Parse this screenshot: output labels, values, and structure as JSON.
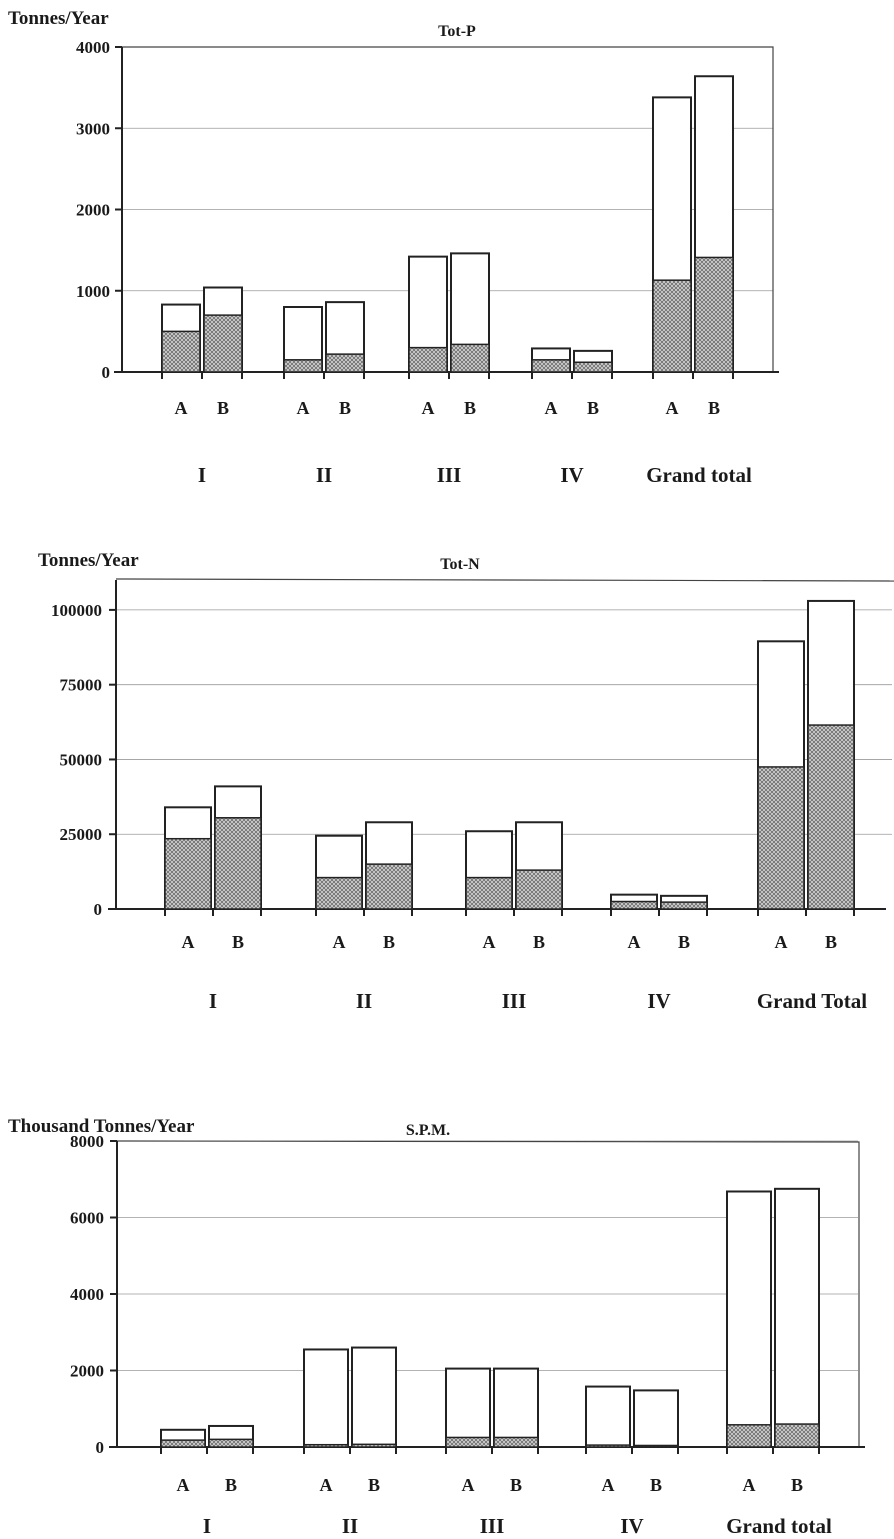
{
  "chart_data": [
    {
      "type": "bar",
      "title": "Tot-P",
      "ylabel": "Tonnes/Year",
      "ylim": [
        0,
        4000
      ],
      "yticks": [
        "0",
        "1000",
        "2000",
        "3000",
        "4000"
      ],
      "grid": true,
      "stacked": true,
      "groups": [
        "I",
        "II",
        "III",
        "IV",
        "Grand total"
      ],
      "bar_labels": [
        "A",
        "B"
      ],
      "series": [
        {
          "values": [
            [
              500,
              700
            ],
            [
              150,
              220
            ],
            [
              300,
              340
            ],
            [
              150,
              120
            ],
            [
              1130,
              1410
            ]
          ]
        },
        {
          "values": [
            [
              830,
              1040
            ],
            [
              800,
              860
            ],
            [
              1420,
              1460
            ],
            [
              290,
              260
            ],
            [
              3380,
              3640
            ]
          ]
        }
      ]
    },
    {
      "type": "bar",
      "title": "Tot-N",
      "ylabel": "Tonnes/Year",
      "ylim": [
        0,
        110000
      ],
      "yticks": [
        "0",
        "25000",
        "50000",
        "75000",
        "100000"
      ],
      "grid": true,
      "stacked": true,
      "groups": [
        "I",
        "II",
        "III",
        "IV",
        "Grand Total"
      ],
      "bar_labels": [
        "A",
        "B"
      ],
      "series": [
        {
          "values": [
            [
              23500,
              30500
            ],
            [
              10500,
              15000
            ],
            [
              10500,
              13000
            ],
            [
              2500,
              2300
            ],
            [
              47500,
              61500
            ]
          ]
        },
        {
          "values": [
            [
              34000,
              41000
            ],
            [
              24500,
              29000
            ],
            [
              26000,
              29000
            ],
            [
              4800,
              4400
            ],
            [
              89500,
              103000
            ]
          ]
        }
      ]
    },
    {
      "type": "bar",
      "title": "S.P.M.",
      "ylabel": "Thousand Tonnes/Year",
      "ylim": [
        0,
        8000
      ],
      "yticks": [
        "0",
        "2000",
        "4000",
        "6000",
        "8000"
      ],
      "grid": true,
      "stacked": true,
      "groups": [
        "I",
        "II",
        "III",
        "IV",
        "Grand total"
      ],
      "bar_labels": [
        "A",
        "B"
      ],
      "series": [
        {
          "values": [
            [
              180,
              200
            ],
            [
              60,
              70
            ],
            [
              250,
              250
            ],
            [
              50,
              40
            ],
            [
              580,
              600
            ]
          ]
        },
        {
          "values": [
            [
              450,
              550
            ],
            [
              2550,
              2600
            ],
            [
              2050,
              2050
            ],
            [
              1580,
              1480
            ],
            [
              6680,
              6750
            ]
          ]
        }
      ]
    }
  ]
}
